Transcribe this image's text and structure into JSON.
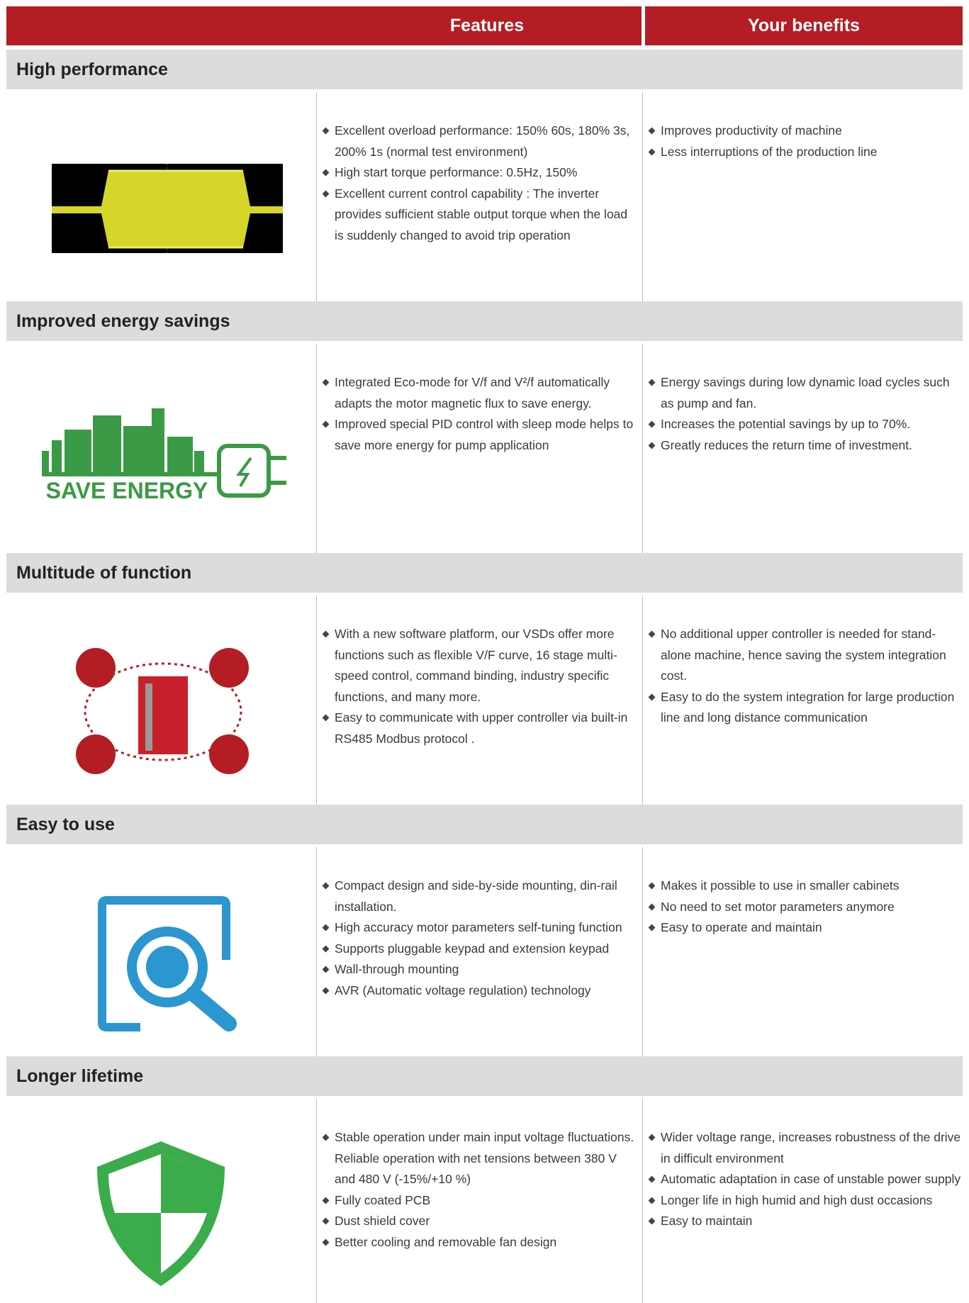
{
  "header": {
    "features": "Features",
    "benefits": "Your benefits"
  },
  "sections": [
    {
      "title": "High performance",
      "features": [
        "Excellent overload performance: 150% 60s, 180% 3s, 200% 1s (normal test environment)",
        "High start torque performance: 0.5Hz, 150%",
        "Excellent current control capability : The inverter provides sufficient stable output torque when the load is suddenly changed to avoid trip operation"
      ],
      "benefits": [
        "Improves productivity of machine",
        "Less interruptions of the production line"
      ]
    },
    {
      "title": "Improved energy savings",
      "image_text": "SAVE ENERGY",
      "features": [
        "Integrated Eco-mode for V/f and V²/f automatically adapts the motor magnetic flux to save energy.",
        "Improved special PID control with sleep mode helps to save more energy for pump application"
      ],
      "benefits": [
        "Energy savings during low dynamic load cycles such as pump and fan.",
        "Increases the potential savings by up to 70%.",
        "Greatly reduces the return time of investment."
      ]
    },
    {
      "title": "Multitude of function",
      "features": [
        "With a new software platform, our VSDs offer more functions such as flexible V/F curve, 16 stage multi- speed control, command binding, industry specific functions, and many more.",
        "Easy to communicate with upper controller via built-in RS485 Modbus protocol ."
      ],
      "benefits": [
        "No additional upper controller is needed for stand-alone machine, hence saving the system integration cost.",
        "Easy to do the system integration for large production line and long distance communication"
      ]
    },
    {
      "title": "Easy to use",
      "features": [
        "Compact design and side-by-side mounting, din-rail installation.",
        "High accuracy motor parameters self-tuning function",
        "Supports pluggable keypad and extension keypad",
        "Wall-through mounting",
        "AVR (Automatic voltage regulation) technology"
      ],
      "benefits": [
        "Makes it possible to use in smaller cabinets",
        "No need to set motor parameters anymore",
        "Easy to operate and maintain"
      ]
    },
    {
      "title": "Longer lifetime",
      "features": [
        "Stable operation under main input voltage fluctuations. Reliable operation with net tensions between 380 V and 480 V (-15%/+10 %)",
        "Fully coated PCB",
        "Dust shield cover",
        "Better cooling and removable fan design"
      ],
      "benefits": [
        "Wider voltage range, increases robustness of the drive in difficult environment",
        "Automatic adaptation in case of unstable power supply",
        "Longer life in high humid and high dust occasions",
        "Easy to maintain"
      ]
    }
  ]
}
